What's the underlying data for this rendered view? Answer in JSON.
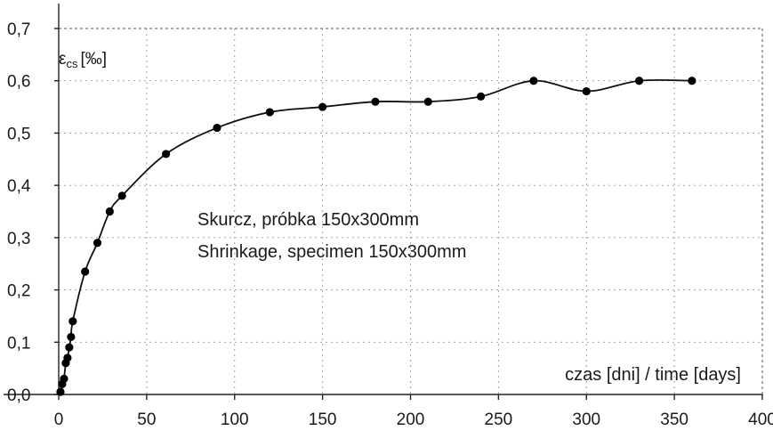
{
  "chart_data": {
    "type": "line",
    "xlabel": "czas [dni] / time [days]",
    "ylabel": "εcs [‰]",
    "ylabel_main": "ε",
    "ylabel_sub": "cs",
    "ylabel_unit": "[‰]",
    "annotations": [
      "Skurcz, próbka 150x300mm",
      "Shrinkage, specimen 150x300mm"
    ],
    "xlim": [
      0,
      400
    ],
    "ylim": [
      0.0,
      0.7
    ],
    "x_ticks": [
      0,
      50,
      100,
      150,
      200,
      250,
      300,
      350,
      400
    ],
    "x_tick_labels": [
      "0",
      "50",
      "100",
      "150",
      "200",
      "250",
      "300",
      "350",
      "400"
    ],
    "y_ticks": [
      0.0,
      0.1,
      0.2,
      0.3,
      0.4,
      0.5,
      0.6,
      0.7
    ],
    "y_tick_labels": [
      "0,0",
      "0,1",
      "0,2",
      "0,3",
      "0,4",
      "0,5",
      "0,6",
      "0,7"
    ],
    "grid": true,
    "legend": "none",
    "series": [
      {
        "x": [
          1,
          2,
          3,
          4,
          5,
          6,
          7,
          8,
          15,
          22,
          29,
          36,
          61,
          90,
          120,
          150,
          180,
          210,
          240,
          270,
          300,
          330,
          360
        ],
        "y": [
          0.005,
          0.02,
          0.03,
          0.06,
          0.07,
          0.09,
          0.11,
          0.14,
          0.235,
          0.29,
          0.35,
          0.38,
          0.46,
          0.51,
          0.54,
          0.55,
          0.56,
          0.56,
          0.57,
          0.6,
          0.58,
          0.6,
          0.6
        ]
      }
    ],
    "colors": {
      "line": "#111111",
      "marker": "#000000",
      "grid": "#9a9a9a"
    }
  }
}
